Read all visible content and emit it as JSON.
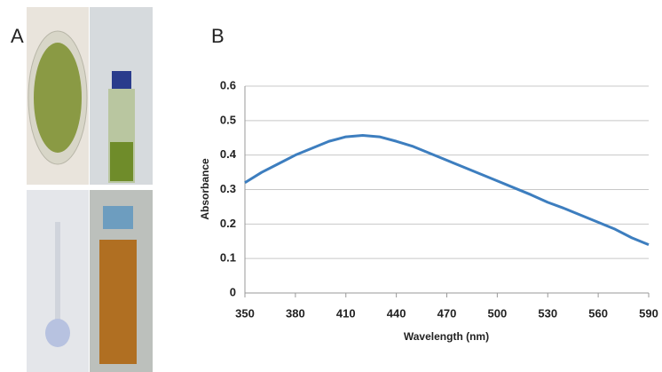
{
  "panel_labels": [
    "A",
    "B"
  ],
  "chart_data": {
    "type": "line",
    "x_label": "Wavelength (nm)",
    "y_label": "Absorbance",
    "x": [
      350,
      360,
      370,
      380,
      390,
      400,
      410,
      420,
      430,
      440,
      450,
      460,
      470,
      480,
      490,
      500,
      510,
      520,
      530,
      540,
      550,
      560,
      570,
      580,
      590
    ],
    "values": [
      0.32,
      0.35,
      0.375,
      0.4,
      0.42,
      0.44,
      0.453,
      0.457,
      0.453,
      0.44,
      0.425,
      0.405,
      0.385,
      0.365,
      0.345,
      0.325,
      0.305,
      0.285,
      0.263,
      0.245,
      0.225,
      0.205,
      0.185,
      0.16,
      0.14
    ],
    "color": "#3d7ebf",
    "xlim": [
      350,
      590
    ],
    "ylim": [
      0,
      0.6
    ],
    "xticks": [
      350,
      380,
      410,
      440,
      470,
      500,
      530,
      560,
      590
    ],
    "yticks": [
      0,
      0.1,
      0.2,
      0.3,
      0.4,
      0.5,
      0.6
    ],
    "grid": true
  }
}
